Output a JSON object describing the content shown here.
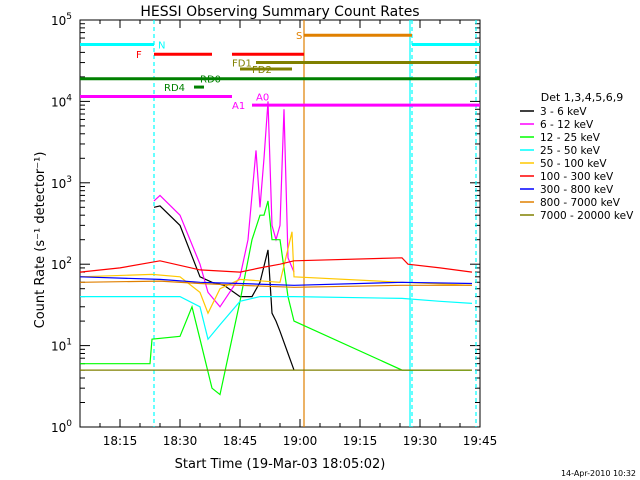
{
  "chart_data": {
    "type": "line",
    "title": "HESSI Observing Summary Count Rates",
    "xlabel": "Start Time (19-Mar-03 18:05:02)",
    "ylabel": "Count Rate (s⁻¹ detector⁻¹)",
    "yscale": "log",
    "xlim_minutes": [
      0,
      100
    ],
    "ylim": [
      1,
      100000
    ],
    "x_ticks": [
      {
        "t": 10,
        "label": "18:15"
      },
      {
        "t": 25,
        "label": "18:30"
      },
      {
        "t": 40,
        "label": "18:45"
      },
      {
        "t": 55,
        "label": "19:00"
      },
      {
        "t": 70,
        "label": "19:15"
      },
      {
        "t": 85,
        "label": "19:30"
      },
      {
        "t": 100,
        "label": "19:45"
      }
    ],
    "y_ticks": [
      {
        "v": 1,
        "base": "10",
        "exp": "0"
      },
      {
        "v": 10,
        "base": "10",
        "exp": "1"
      },
      {
        "v": 100,
        "base": "10",
        "exp": "2"
      },
      {
        "v": 1000,
        "base": "10",
        "exp": "3"
      },
      {
        "v": 10000,
        "base": "10",
        "exp": "4"
      },
      {
        "v": 100000,
        "base": "10",
        "exp": "5"
      }
    ],
    "legend_title": "Det 1,3,4,5,6,9",
    "legend_placement": "right",
    "series": [
      {
        "name": "3 - 6 keV",
        "color": "#000000",
        "x": [
          18.5,
          20,
          25,
          30,
          33,
          36,
          40,
          43,
          45,
          47,
          48,
          49,
          50,
          52,
          53.5
        ],
        "y": [
          500,
          520,
          300,
          70,
          60,
          55,
          40,
          40,
          60,
          150,
          25,
          20,
          15,
          8,
          5
        ]
      },
      {
        "name": "6 - 12 keV",
        "color": "#ff00ff",
        "x": [
          18.5,
          20,
          25,
          30,
          32,
          35,
          40,
          42,
          44,
          45,
          46,
          47,
          48,
          49,
          50,
          51,
          52,
          53.5
        ],
        "y": [
          600,
          700,
          400,
          100,
          45,
          30,
          70,
          200,
          2500,
          500,
          2000,
          10000,
          300,
          200,
          300,
          8000,
          120,
          80
        ]
      },
      {
        "name": "12 - 25 keV",
        "color": "#00ff00",
        "x": [
          0,
          14,
          17.5,
          18,
          25,
          28,
          30,
          33,
          35,
          40,
          43,
          45,
          46,
          47,
          48,
          50,
          52,
          53.5,
          80.5,
          82,
          98
        ],
        "y": [
          6,
          6,
          6,
          12,
          13,
          30,
          12,
          3,
          2.5,
          35,
          200,
          400,
          400,
          600,
          200,
          200,
          40,
          20,
          5,
          5,
          5
        ]
      },
      {
        "name": "25 - 50 keV",
        "color": "#00ffff",
        "x": [
          0,
          18,
          25,
          30,
          32,
          35,
          40,
          45,
          50,
          53.5,
          80.5,
          90,
          98
        ],
        "y": [
          40,
          40,
          40,
          30,
          12,
          18,
          35,
          40,
          40,
          40,
          38,
          35,
          33
        ]
      },
      {
        "name": "50 - 100 keV",
        "color": "#ffc800",
        "x": [
          0,
          18,
          25,
          30,
          32,
          35,
          40,
          50,
          53,
          53.5,
          80.5,
          98
        ],
        "y": [
          70,
          75,
          70,
          45,
          25,
          50,
          65,
          60,
          250,
          70,
          60,
          55
        ]
      },
      {
        "name": "100 - 300 keV",
        "color": "#ff0000",
        "x": [
          0,
          10,
          20,
          30,
          40,
          45,
          50,
          53.5,
          80.5,
          82,
          90,
          98
        ],
        "y": [
          80,
          90,
          110,
          85,
          80,
          90,
          100,
          110,
          120,
          100,
          90,
          80
        ]
      },
      {
        "name": "300 - 800 keV",
        "color": "#0000ff",
        "x": [
          0,
          20,
          30,
          40,
          53.5,
          80.5,
          98
        ],
        "y": [
          70,
          65,
          60,
          58,
          55,
          60,
          58
        ]
      },
      {
        "name": "800 - 7000 keV",
        "color": "#e08000",
        "x": [
          0,
          20,
          30,
          40,
          53.5,
          80.5,
          98
        ],
        "y": [
          60,
          62,
          58,
          55,
          52,
          55,
          55
        ]
      },
      {
        "name": "7000 - 20000 keV",
        "color": "#808000",
        "x": [
          0,
          53.5,
          80.5,
          98
        ],
        "y": [
          5,
          5,
          5,
          5
        ]
      }
    ],
    "flag_bars": [
      {
        "label": "N",
        "color": "#00ffff",
        "value": 50000,
        "segments": [
          [
            0,
            18.5
          ],
          [
            83,
            100
          ]
        ],
        "label_at": 19.5
      },
      {
        "label": "S",
        "color": "#e08000",
        "value": 65000,
        "segments": [
          [
            56,
            83
          ]
        ],
        "label_at": 54
      },
      {
        "label": "F",
        "color": "#ff0000",
        "value": 38000,
        "segments": [
          [
            18.5,
            33
          ],
          [
            38,
            56
          ]
        ],
        "label_at": 14
      },
      {
        "label": "FD1",
        "color": "#808000",
        "value": 30000,
        "segments": [
          [
            44,
            100
          ]
        ],
        "label_at": 38
      },
      {
        "label": "FD2",
        "color": "#808000",
        "value": 25000,
        "segments": [
          [
            40,
            53
          ]
        ],
        "label_at": 43
      },
      {
        "label": "RD0",
        "color": "#008000",
        "value": 19000,
        "segments": [
          [
            0,
            100
          ]
        ],
        "label_at": 30
      },
      {
        "label": "RD4",
        "color": "#008000",
        "value": 15000,
        "segments": [
          [
            28.5,
            31
          ]
        ],
        "label_at": 21
      },
      {
        "label": "A0",
        "color": "#ff00ff",
        "value": 11500,
        "segments": [
          [
            0,
            38
          ]
        ],
        "label_at": 44
      },
      {
        "label": "A1",
        "color": "#ff00ff",
        "value": 9000,
        "segments": [
          [
            43,
            100
          ]
        ],
        "label_at": 38
      }
    ],
    "vertical_markers": [
      {
        "t": 18.5,
        "color": "#00ffff",
        "style": "dashed"
      },
      {
        "t": 56,
        "color": "#e08000",
        "style": "solid"
      },
      {
        "t": 82.5,
        "color": "#00ffff",
        "style": "solid"
      },
      {
        "t": 83,
        "color": "#00ffff",
        "style": "dashed"
      },
      {
        "t": 99,
        "color": "#00ffff",
        "style": "dashed"
      }
    ]
  },
  "timestamp": "14-Apr-2010 10:32"
}
